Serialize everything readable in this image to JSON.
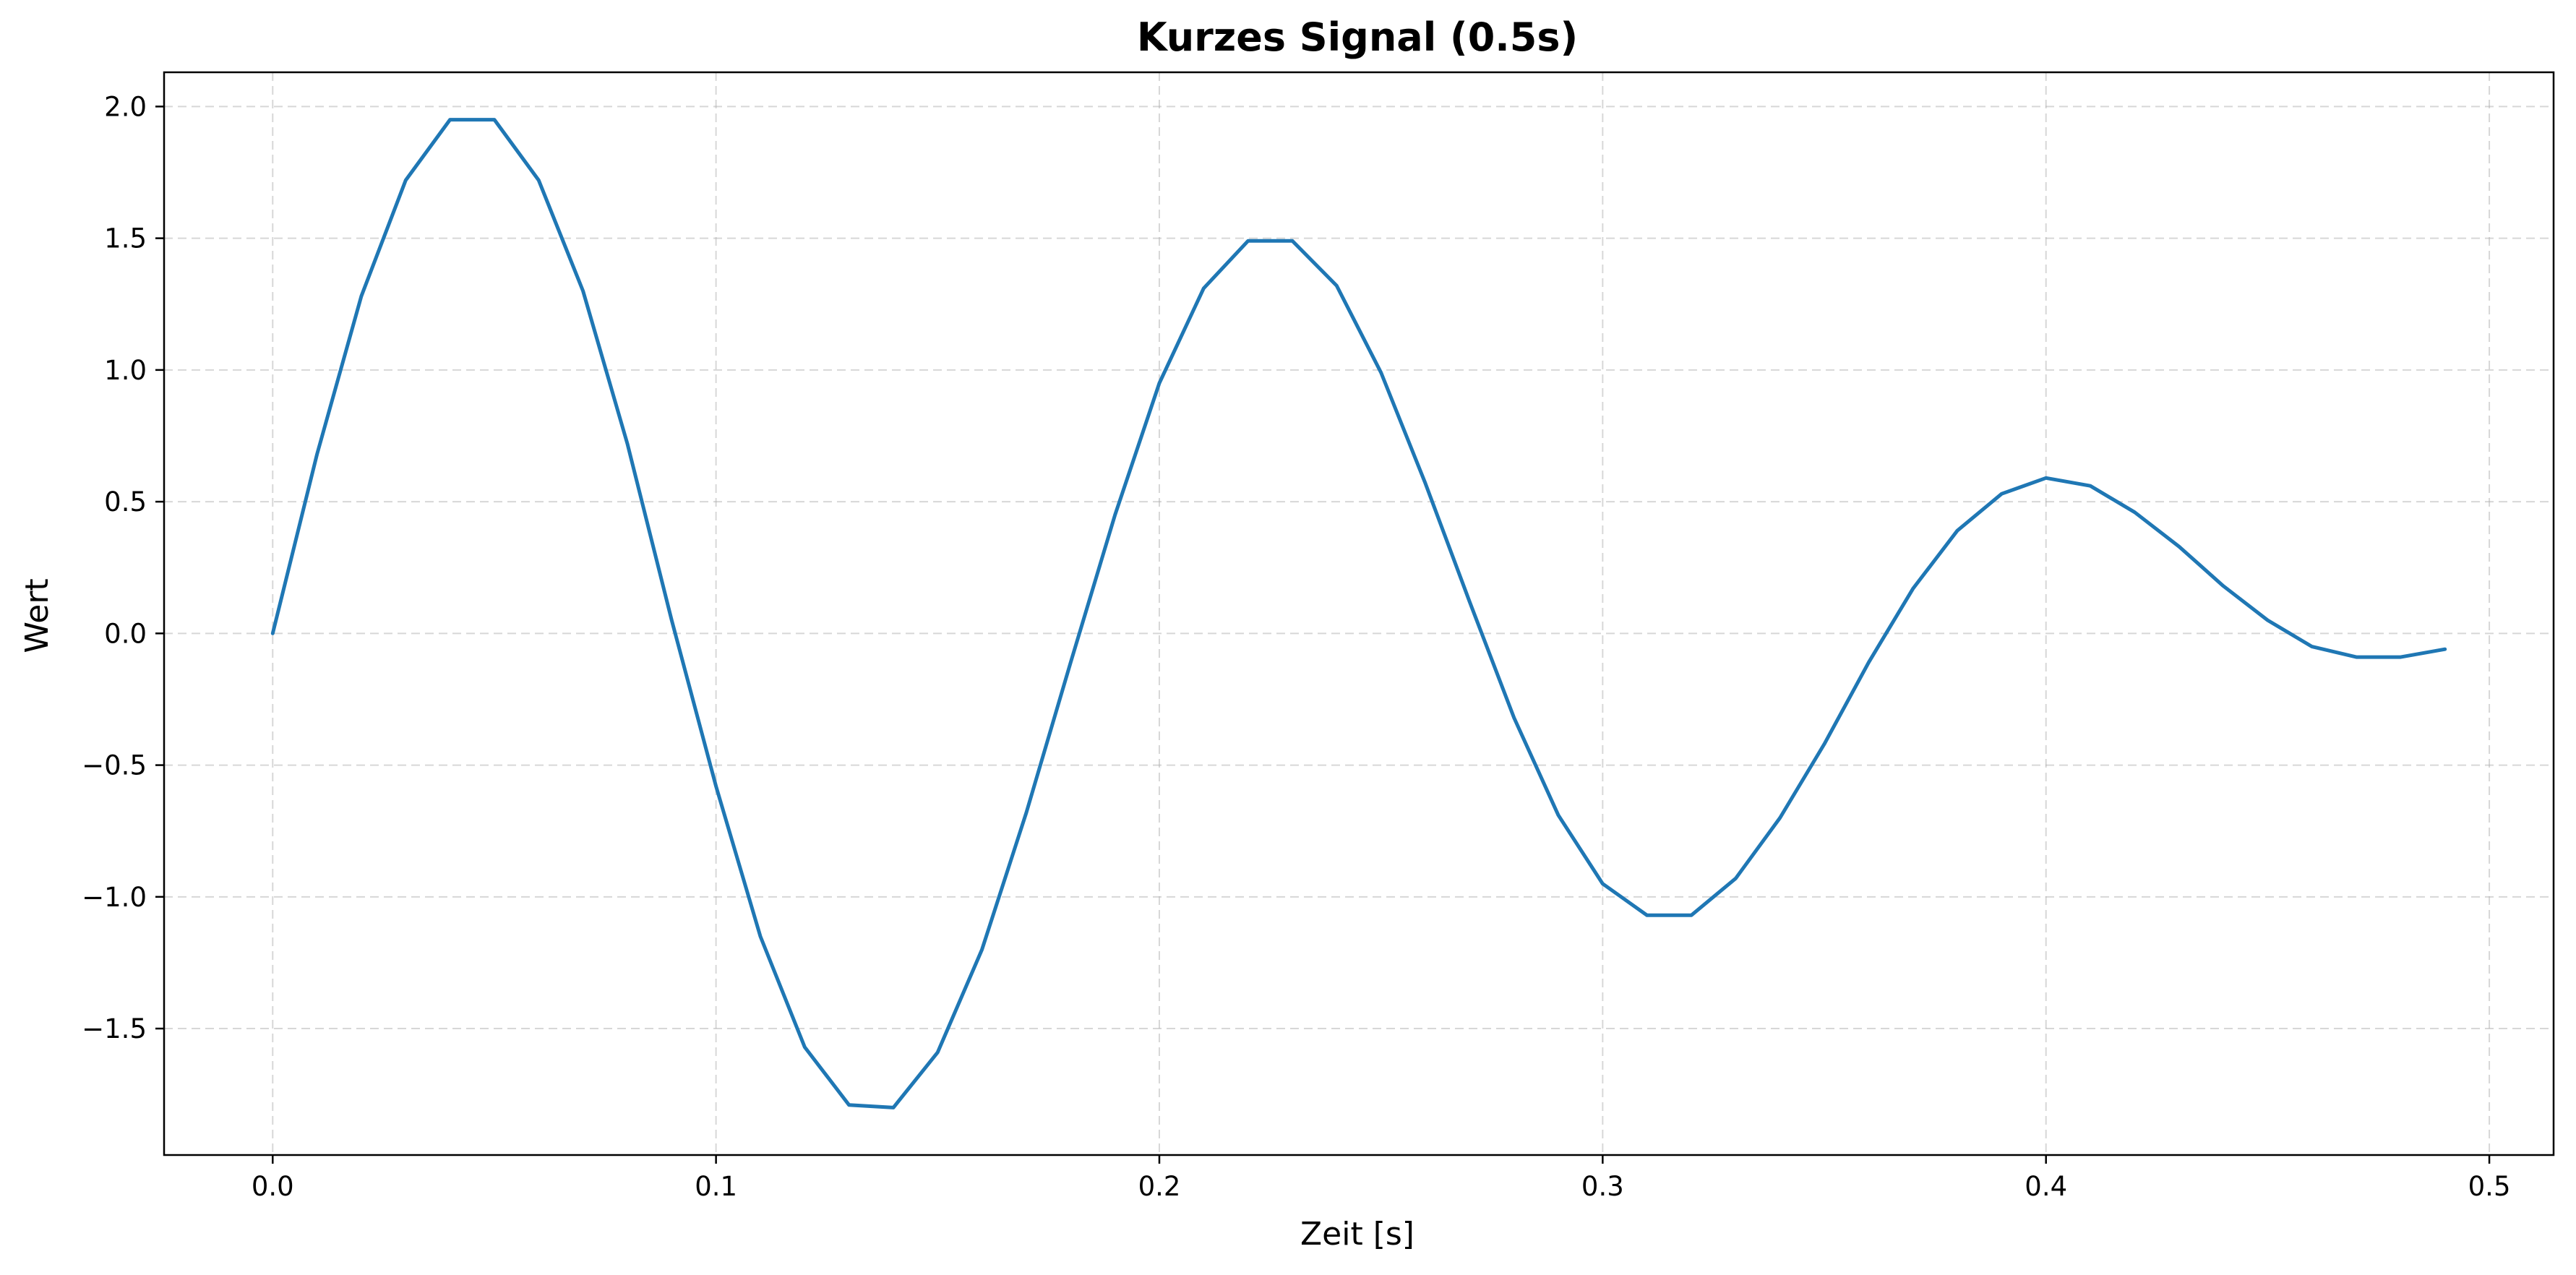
{
  "chart_data": {
    "type": "line",
    "title": "Kurzes Signal (0.5s)",
    "xlabel": "Zeit [s]",
    "ylabel": "Wert",
    "xlim": [
      -0.0245,
      0.5145
    ],
    "ylim": [
      -1.98,
      2.13
    ],
    "xticks": [
      0.0,
      0.1,
      0.2,
      0.3,
      0.4,
      0.5
    ],
    "xtick_labels": [
      "0.0",
      "0.1",
      "0.2",
      "0.3",
      "0.4",
      "0.5"
    ],
    "yticks": [
      2.0,
      1.5,
      1.0,
      0.5,
      0.0,
      -0.5,
      -1.0,
      -1.5
    ],
    "ytick_labels": [
      "2.0",
      "1.5",
      "1.0",
      "0.5",
      "0.0",
      "−0.5",
      "−1.0",
      "−1.5"
    ],
    "grid": true,
    "series": [
      {
        "color": "#1f77b4",
        "x": [
          0.0,
          0.01,
          0.02,
          0.03,
          0.04,
          0.05,
          0.06,
          0.07,
          0.08,
          0.09,
          0.1,
          0.11,
          0.12,
          0.13,
          0.14,
          0.15,
          0.16,
          0.17,
          0.18,
          0.19,
          0.2,
          0.21,
          0.22,
          0.23,
          0.24,
          0.25,
          0.26,
          0.27,
          0.28,
          0.29,
          0.3,
          0.31,
          0.32,
          0.33,
          0.34,
          0.35,
          0.36,
          0.37,
          0.38,
          0.39,
          0.4,
          0.41,
          0.42,
          0.43,
          0.44,
          0.45,
          0.46,
          0.47,
          0.48,
          0.49
        ],
        "y": [
          0.0,
          0.68,
          1.28,
          1.72,
          1.95,
          1.95,
          1.72,
          1.3,
          0.72,
          0.05,
          -0.58,
          -1.15,
          -1.57,
          -1.79,
          -1.8,
          -1.59,
          -1.2,
          -0.68,
          -0.11,
          0.45,
          0.95,
          1.31,
          1.49,
          1.49,
          1.32,
          0.99,
          0.57,
          0.12,
          -0.32,
          -0.69,
          -0.95,
          -1.07,
          -1.07,
          -0.93,
          -0.7,
          -0.42,
          -0.11,
          0.17,
          0.39,
          0.53,
          0.59,
          0.56,
          0.46,
          0.33,
          0.18,
          0.05,
          -0.05,
          -0.09,
          -0.09,
          -0.06
        ]
      }
    ]
  }
}
